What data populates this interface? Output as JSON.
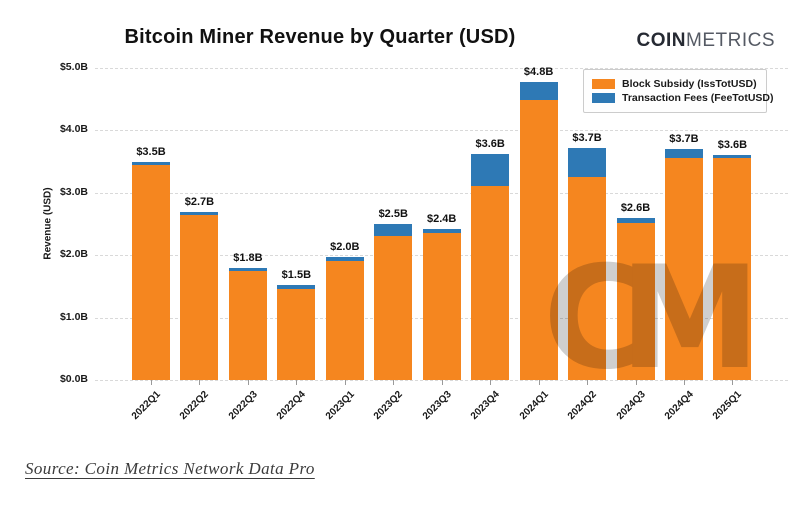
{
  "header": {
    "title": "Bitcoin Miner Revenue by Quarter (USD)",
    "logo": {
      "bold": "COIN",
      "light": "METRICS"
    }
  },
  "legend": {
    "position": "top-right",
    "items": [
      {
        "label": "Block Subsidy (IssTotUSD)",
        "color": "#F5861F"
      },
      {
        "label": "Transaction Fees (FeeTotUSD)",
        "color": "#2E79B5"
      }
    ]
  },
  "watermark": {
    "text": "CM",
    "color": "#c7c7c7"
  },
  "footer": {
    "source": "Source: Coin Metrics Network Data Pro"
  },
  "chart_data": {
    "type": "bar",
    "stacked": true,
    "title": "Bitcoin Miner Revenue by Quarter (USD)",
    "xlabel": "",
    "ylabel": "Revenue (USD)",
    "ylim": [
      0,
      5.0
    ],
    "ytick_labels": [
      "$0.0B",
      "$1.0B",
      "$2.0B",
      "$3.0B",
      "$4.0B",
      "$5.0B"
    ],
    "ytick_values": [
      0,
      1,
      2,
      3,
      4,
      5
    ],
    "grid": "horizontal-dashed",
    "legend_position": "top-right-inside",
    "categories": [
      "2022Q1",
      "2022Q2",
      "2022Q3",
      "2022Q4",
      "2023Q1",
      "2023Q2",
      "2023Q3",
      "2023Q4",
      "2024Q1",
      "2024Q2",
      "2024Q3",
      "2024Q4",
      "2025Q1"
    ],
    "series": [
      {
        "name": "Block Subsidy (IssTotUSD)",
        "color": "#F5861F",
        "values": [
          3.44,
          2.64,
          1.74,
          1.46,
          1.91,
          2.31,
          2.35,
          3.11,
          4.48,
          3.26,
          2.52,
          3.55,
          3.55
        ]
      },
      {
        "name": "Transaction Fees (FeeTotUSD)",
        "color": "#2E79B5",
        "values": [
          0.06,
          0.06,
          0.06,
          0.06,
          0.06,
          0.19,
          0.07,
          0.51,
          0.3,
          0.46,
          0.07,
          0.15,
          0.06
        ]
      }
    ],
    "total_labels": [
      "$3.5B",
      "$2.7B",
      "$1.8B",
      "$1.5B",
      "$2.0B",
      "$2.5B",
      "$2.4B",
      "$3.6B",
      "$4.8B",
      "$3.7B",
      "$2.6B",
      "$3.7B",
      "$3.6B"
    ]
  }
}
